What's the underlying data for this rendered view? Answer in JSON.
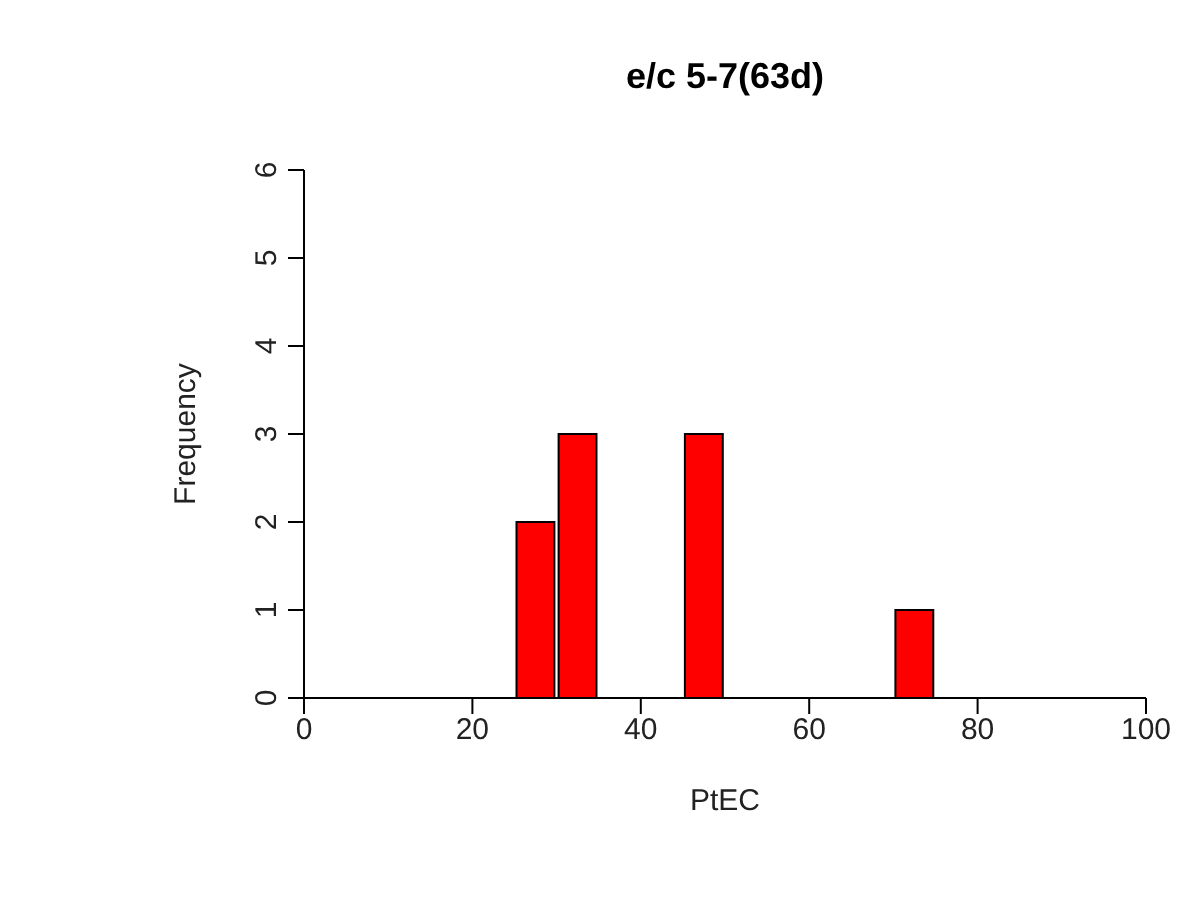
{
  "chart_data": {
    "type": "histogram",
    "title": "e/c 5-7(63d)",
    "xlabel": "PtEC",
    "ylabel": "Frequency",
    "bins": [
      25,
      30,
      35,
      40,
      45,
      50,
      55,
      60,
      65,
      70,
      75
    ],
    "values": [
      2,
      3,
      0,
      0,
      3,
      0,
      0,
      0,
      0,
      1
    ],
    "color": "#ff0000",
    "xlim": [
      0,
      100
    ],
    "xticks": [
      0,
      20,
      40,
      60,
      80,
      100
    ],
    "ylim": [
      0,
      6
    ],
    "yticks": [
      0,
      1,
      2,
      3,
      4,
      5,
      6
    ]
  }
}
